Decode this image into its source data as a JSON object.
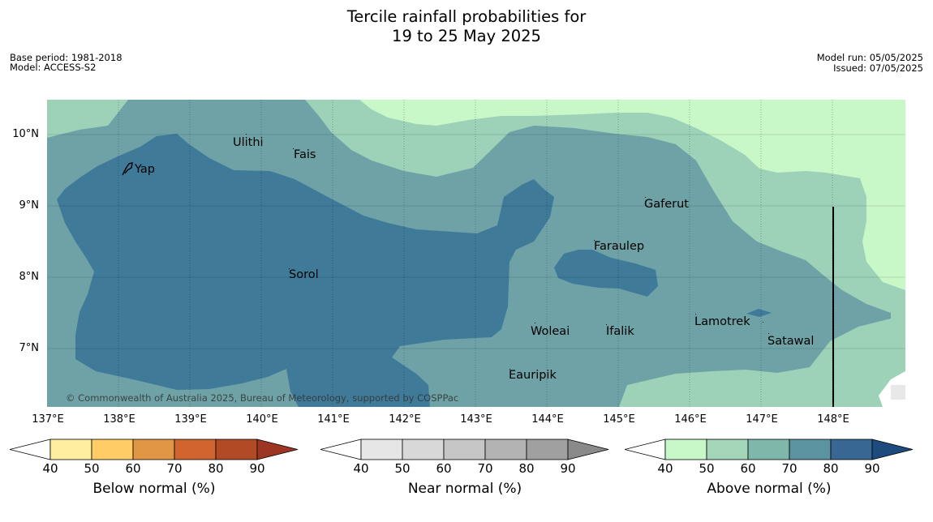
{
  "header": {
    "title_line1": "Tercile rainfall probabilities for",
    "title_line2": "19 to 25 May 2025",
    "base_period": "Base period: 1981-2018",
    "model": "Model: ACCESS-S2",
    "model_run": "Model run: 05/05/2025",
    "issued": "Issued: 07/05/2025"
  },
  "map": {
    "longitude_labels": [
      "137°E",
      "138°E",
      "139°E",
      "140°E",
      "141°E",
      "142°E",
      "143°E",
      "144°E",
      "145°E",
      "146°E",
      "147°E",
      "148°E"
    ],
    "latitude_labels": [
      "10°N",
      "9°N",
      "8°N",
      "7°N"
    ],
    "places": [
      "Ulithi",
      "Fais",
      "Yap",
      "Gaferut",
      "Faraulep",
      "Sorol",
      "Lamotrek",
      "Woleai",
      "Ifalik",
      "Satawal",
      "Eauripik"
    ],
    "copyright": "© Commonwealth of Australia 2025, Bureau of Meteorology, supported by COSPPac",
    "colors": {
      "above_50_60": "#c8f7c8",
      "above_60_70": "#9dd1b8",
      "above_70_80": "#6ea2a6",
      "above_80_90": "#3f7a99",
      "land": "#000000"
    }
  },
  "legends": [
    {
      "title": "Below normal (%)",
      "ticks": [
        "40",
        "50",
        "60",
        "70",
        "80",
        "90"
      ],
      "colors": [
        "#ffffff",
        "#ffeea0",
        "#ffcc66",
        "#e09644",
        "#d0652f",
        "#b14a25",
        "#9c3623"
      ]
    },
    {
      "title": "Near normal (%)",
      "ticks": [
        "40",
        "50",
        "60",
        "70",
        "80",
        "90"
      ],
      "colors": [
        "#ffffff",
        "#e6e6e6",
        "#d8d8d8",
        "#c6c6c6",
        "#b3b3b3",
        "#a0a0a0",
        "#8a8a8a"
      ]
    },
    {
      "title": "Above normal (%)",
      "ticks": [
        "40",
        "50",
        "60",
        "70",
        "80",
        "90"
      ],
      "colors": [
        "#ffffff",
        "#c8f7c8",
        "#a3d6b9",
        "#80b7ab",
        "#5b93a1",
        "#386794",
        "#1d4b7e"
      ]
    }
  ]
}
